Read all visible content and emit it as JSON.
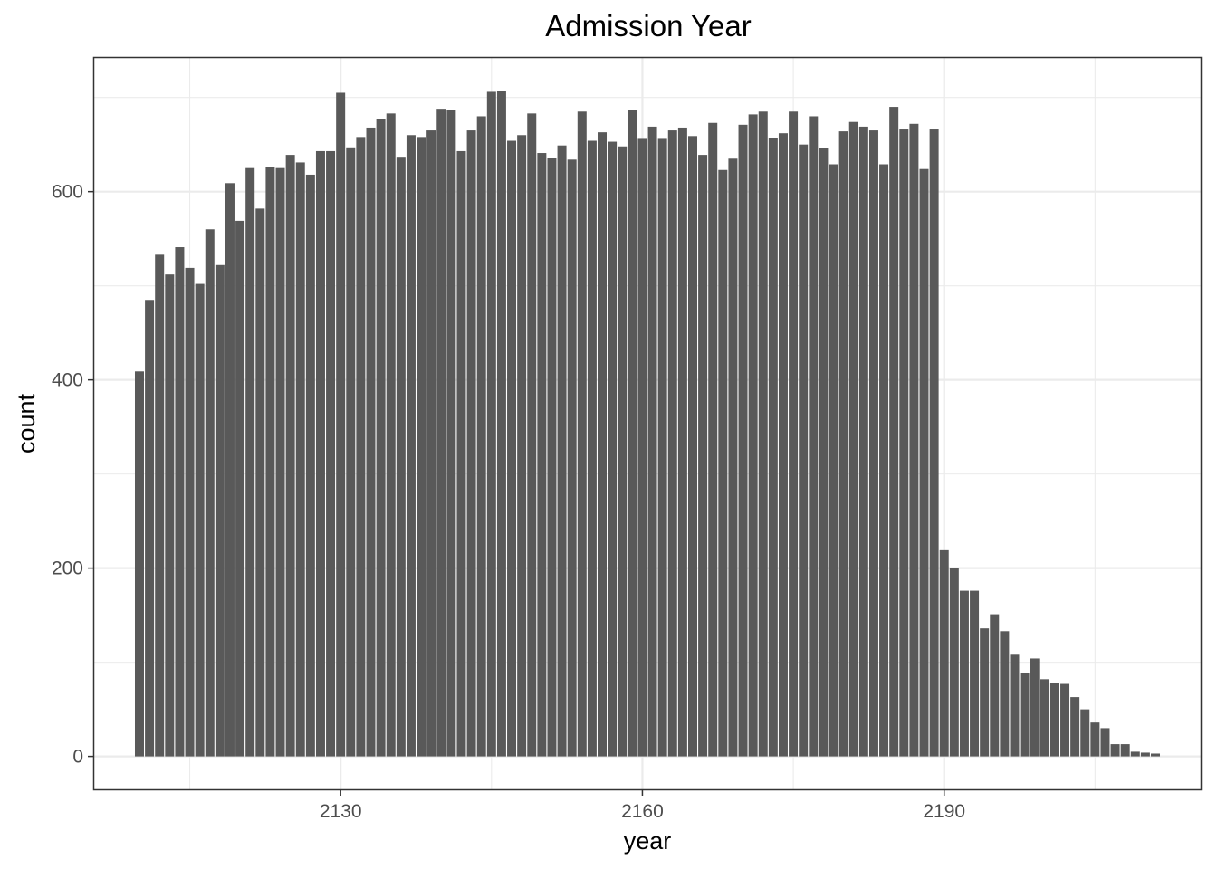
{
  "chart_data": {
    "type": "bar",
    "title": "Admission Year",
    "xlabel": "year",
    "ylabel": "count",
    "x_ticks": [
      2130,
      2160,
      2190
    ],
    "y_ticks": [
      0,
      200,
      400,
      600
    ],
    "xlim": [
      2105.5,
      2215.5
    ],
    "ylim": [
      -35,
      742
    ],
    "grid": true,
    "bar_color": "#595959",
    "x": [
      2110,
      2111,
      2112,
      2113,
      2114,
      2115,
      2116,
      2117,
      2118,
      2119,
      2120,
      2121,
      2122,
      2123,
      2124,
      2125,
      2126,
      2127,
      2128,
      2129,
      2130,
      2131,
      2132,
      2133,
      2134,
      2135,
      2136,
      2137,
      2138,
      2139,
      2140,
      2141,
      2142,
      2143,
      2144,
      2145,
      2146,
      2147,
      2148,
      2149,
      2150,
      2151,
      2152,
      2153,
      2154,
      2155,
      2156,
      2157,
      2158,
      2159,
      2160,
      2161,
      2162,
      2163,
      2164,
      2165,
      2166,
      2167,
      2168,
      2169,
      2170,
      2171,
      2172,
      2173,
      2174,
      2175,
      2176,
      2177,
      2178,
      2179,
      2180,
      2181,
      2182,
      2183,
      2184,
      2185,
      2186,
      2187,
      2188,
      2189,
      2190,
      2191,
      2192,
      2193,
      2194,
      2195,
      2196,
      2197,
      2198,
      2199,
      2200,
      2201,
      2202,
      2203,
      2204,
      2205,
      2206,
      2207,
      2208,
      2209,
      2210,
      2211
    ],
    "values": [
      409,
      485,
      533,
      512,
      541,
      519,
      502,
      560,
      522,
      609,
      569,
      625,
      582,
      626,
      625,
      639,
      631,
      618,
      643,
      643,
      705,
      647,
      658,
      668,
      677,
      683,
      637,
      660,
      658,
      665,
      688,
      687,
      643,
      665,
      680,
      706,
      707,
      654,
      660,
      683,
      641,
      636,
      649,
      634,
      685,
      654,
      663,
      653,
      648,
      687,
      656,
      669,
      656,
      665,
      668,
      659,
      639,
      673,
      623,
      635,
      671,
      682,
      685,
      657,
      662,
      685,
      650,
      680,
      646,
      629,
      664,
      674,
      669,
      665,
      629,
      690,
      666,
      672,
      624,
      666,
      219,
      200,
      176,
      176,
      136,
      151,
      133,
      108,
      89,
      104,
      82,
      78,
      77,
      63,
      50,
      36,
      30,
      13,
      13,
      5,
      4,
      3
    ]
  }
}
